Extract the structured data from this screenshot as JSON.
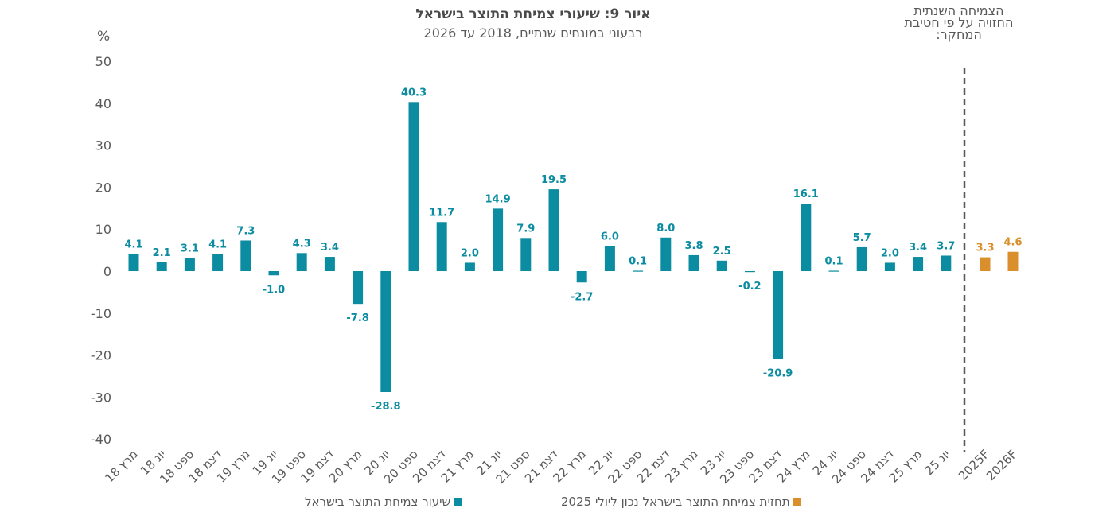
{
  "chart_data": {
    "type": "bar",
    "title": "איור 9: שיעורי צמיחת התוצר בישראל",
    "subtitle": "רבעוני במונחים שנתיים, 2018 עד 2026",
    "side_note": [
      "הצמיחה השנתית",
      "החזויה על פי חטיבת",
      "המחקר:"
    ],
    "ylabel": "%",
    "ylim": [
      -40,
      50
    ],
    "yticks": [
      50,
      40,
      30,
      20,
      10,
      0,
      -10,
      -20,
      -30,
      -40
    ],
    "grid": false,
    "categories": [
      "מרץ 18",
      "יונ 18",
      "ספט 18",
      "דצמ 18",
      "מרץ 19",
      "יונ 19",
      "ספט 19",
      "דצמ 19",
      "מרץ 20",
      "יונ 20",
      "ספט 20",
      "דצמ 20",
      "מרץ 21",
      "יונ 21",
      "ספט 21",
      "דצמ 21",
      "מרץ 22",
      "יונ 22",
      "ספט 22",
      "דצמ 22",
      "מרץ 23",
      "יונ 23",
      "ספט 23",
      "דצמ 23",
      "מרץ 24",
      "יונ 24",
      "ספט 24",
      "דצמ 24",
      "מרץ 25",
      "יונ 25",
      "2025F",
      "2026F"
    ],
    "series": [
      {
        "name": "שיעור צמיחת התוצר בישראל",
        "color": "#0B8CA0",
        "values": [
          4.1,
          2.1,
          3.1,
          4.1,
          7.3,
          -1.0,
          4.3,
          3.4,
          -7.8,
          -28.8,
          40.3,
          11.7,
          2.0,
          14.9,
          7.9,
          19.5,
          -2.7,
          6.0,
          0.1,
          8.0,
          3.8,
          2.5,
          -0.2,
          -20.9,
          16.1,
          0.1,
          5.7,
          2.0,
          3.4,
          3.7,
          null,
          null
        ]
      },
      {
        "name": "תחזית צמיחת התוצר בישראל נכון ליולי 2025",
        "color": "#D98F2B",
        "values": [
          null,
          null,
          null,
          null,
          null,
          null,
          null,
          null,
          null,
          null,
          null,
          null,
          null,
          null,
          null,
          null,
          null,
          null,
          null,
          null,
          null,
          null,
          null,
          null,
          null,
          null,
          null,
          null,
          null,
          null,
          3.3,
          4.6
        ]
      }
    ],
    "legend_position": "bottom"
  }
}
